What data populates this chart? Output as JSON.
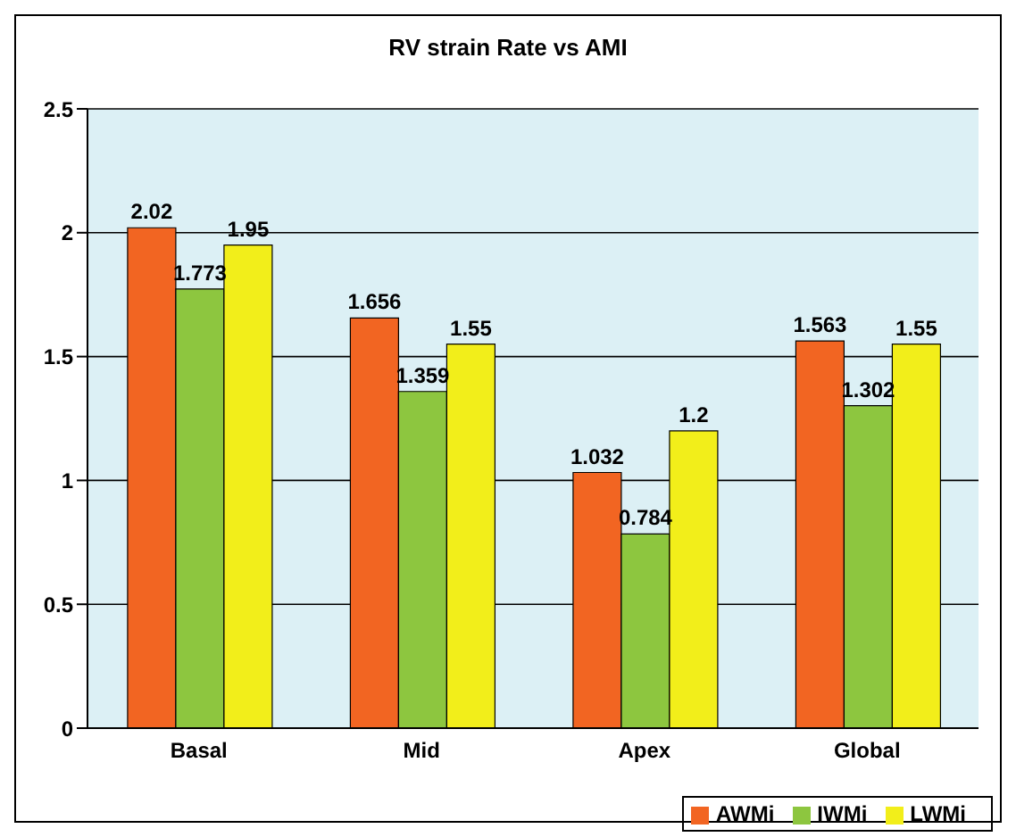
{
  "chart_data": {
    "type": "bar",
    "title": "RV strain Rate vs AMI",
    "categories": [
      "Basal",
      "Mid",
      "Apex",
      "Global"
    ],
    "series": [
      {
        "name": "AWMi",
        "color": "#f26522",
        "values": [
          2.02,
          1.656,
          1.032,
          1.563
        ]
      },
      {
        "name": "IWMi",
        "color": "#8dc63f",
        "values": [
          1.773,
          1.359,
          0.784,
          1.302
        ]
      },
      {
        "name": "LWMi",
        "color": "#f2ee1a",
        "values": [
          1.95,
          1.55,
          1.2,
          1.55
        ]
      }
    ],
    "ylim": [
      0,
      2.5
    ],
    "yticks": [
      0,
      0.5,
      1,
      1.5,
      2,
      2.5
    ],
    "grid": "y",
    "legend": "bottom right",
    "data_labels": true
  }
}
